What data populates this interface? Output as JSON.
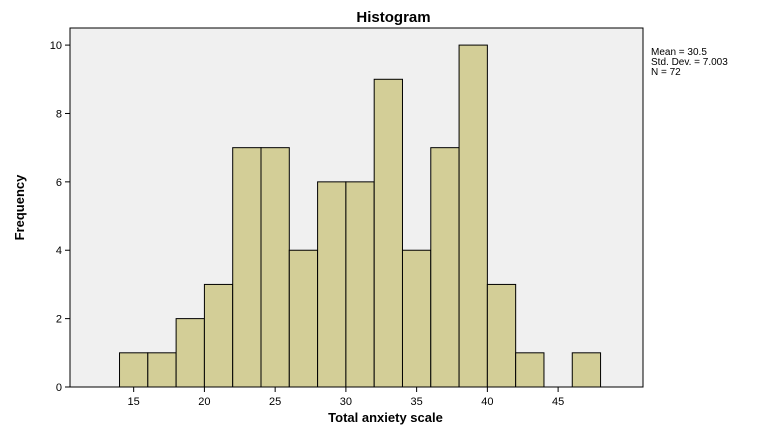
{
  "chart_data": {
    "type": "histogram",
    "title": "Histogram",
    "xlabel": "Total anxiety scale",
    "ylabel": "Frequency",
    "bin_width": 2,
    "bins": [
      {
        "start": 14,
        "end": 16,
        "count": 1
      },
      {
        "start": 16,
        "end": 18,
        "count": 1
      },
      {
        "start": 18,
        "end": 20,
        "count": 2
      },
      {
        "start": 20,
        "end": 22,
        "count": 3
      },
      {
        "start": 22,
        "end": 24,
        "count": 7
      },
      {
        "start": 24,
        "end": 26,
        "count": 7
      },
      {
        "start": 26,
        "end": 28,
        "count": 4
      },
      {
        "start": 28,
        "end": 30,
        "count": 6
      },
      {
        "start": 30,
        "end": 32,
        "count": 6
      },
      {
        "start": 32,
        "end": 34,
        "count": 9
      },
      {
        "start": 34,
        "end": 36,
        "count": 4
      },
      {
        "start": 36,
        "end": 38,
        "count": 7
      },
      {
        "start": 38,
        "end": 40,
        "count": 10
      },
      {
        "start": 40,
        "end": 42,
        "count": 3
      },
      {
        "start": 42,
        "end": 44,
        "count": 1
      },
      {
        "start": 46,
        "end": 48,
        "count": 1
      }
    ],
    "xlim": [
      10.5,
      51
    ],
    "ylim": [
      0,
      10.5
    ],
    "xticks": [
      15,
      20,
      25,
      30,
      35,
      40,
      45
    ],
    "yticks": [
      0,
      2,
      4,
      6,
      8,
      10
    ],
    "grid": false,
    "colors": {
      "plot_background": "#f0f0f0",
      "bar_fill": "#d3ce97",
      "bar_stroke": "#000000"
    },
    "stats": {
      "mean_label": "Mean = 30.5",
      "sd_label": "Std. Dev. = 7.003",
      "n_label": "N = 72"
    }
  }
}
